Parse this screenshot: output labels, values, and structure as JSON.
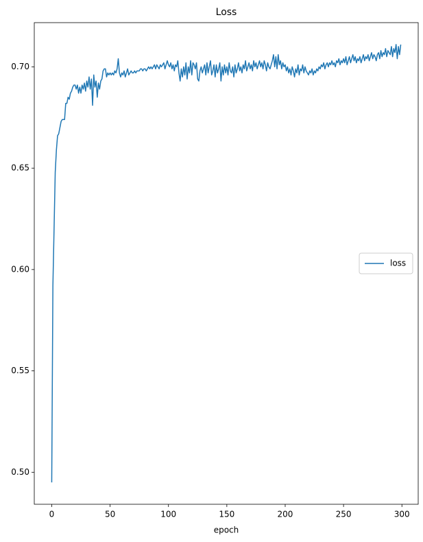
{
  "chart_data": {
    "type": "line",
    "title": "Loss",
    "x_label": "epoch",
    "x": [
      0,
      1,
      2,
      3,
      4,
      5,
      6,
      7,
      8,
      9,
      10,
      11,
      12,
      13,
      14,
      15,
      16,
      17,
      18,
      19,
      20,
      21,
      22,
      23,
      24,
      25,
      26,
      27,
      28,
      29,
      30,
      31,
      32,
      33,
      34,
      35,
      36,
      37,
      38,
      39,
      40,
      41,
      42,
      43,
      44,
      45,
      46,
      47,
      48,
      49,
      50,
      51,
      52,
      53,
      54,
      55,
      56,
      57,
      58,
      59,
      60,
      61,
      62,
      63,
      64,
      65,
      66,
      67,
      68,
      69,
      70,
      71,
      72,
      73,
      74,
      75,
      76,
      77,
      78,
      79,
      80,
      81,
      82,
      83,
      84,
      85,
      86,
      87,
      88,
      89,
      90,
      91,
      92,
      93,
      94,
      95,
      96,
      97,
      98,
      99,
      100,
      101,
      102,
      103,
      104,
      105,
      106,
      107,
      108,
      109,
      110,
      111,
      112,
      113,
      114,
      115,
      116,
      117,
      118,
      119,
      120,
      121,
      122,
      123,
      124,
      125,
      126,
      127,
      128,
      129,
      130,
      131,
      132,
      133,
      134,
      135,
      136,
      137,
      138,
      139,
      140,
      141,
      142,
      143,
      144,
      145,
      146,
      147,
      148,
      149,
      150,
      151,
      152,
      153,
      154,
      155,
      156,
      157,
      158,
      159,
      160,
      161,
      162,
      163,
      164,
      165,
      166,
      167,
      168,
      169,
      170,
      171,
      172,
      173,
      174,
      175,
      176,
      177,
      178,
      179,
      180,
      181,
      182,
      183,
      184,
      185,
      186,
      187,
      188,
      189,
      190,
      191,
      192,
      193,
      194,
      195,
      196,
      197,
      198,
      199,
      200,
      201,
      202,
      203,
      204,
      205,
      206,
      207,
      208,
      209,
      210,
      211,
      212,
      213,
      214,
      215,
      216,
      217,
      218,
      219,
      220,
      221,
      222,
      223,
      224,
      225,
      226,
      227,
      228,
      229,
      230,
      231,
      232,
      233,
      234,
      235,
      236,
      237,
      238,
      239,
      240,
      241,
      242,
      243,
      244,
      245,
      246,
      247,
      248,
      249,
      250,
      251,
      252,
      253,
      254,
      255,
      256,
      257,
      258,
      259,
      260,
      261,
      262,
      263,
      264,
      265,
      266,
      267,
      268,
      269,
      270,
      271,
      272,
      273,
      274,
      275,
      276,
      277,
      278,
      279,
      280,
      281,
      282,
      283,
      284,
      285,
      286,
      287,
      288,
      289,
      290,
      291,
      292,
      293,
      294,
      295,
      296,
      297,
      298,
      299
    ],
    "series": [
      {
        "name": "loss",
        "color": "#1f77b4",
        "values": [
          0.495,
          0.592,
          0.62,
          0.648,
          0.659,
          0.666,
          0.667,
          0.67,
          0.673,
          0.674,
          0.674,
          0.674,
          0.682,
          0.682,
          0.685,
          0.684,
          0.687,
          0.688,
          0.69,
          0.691,
          0.691,
          0.689,
          0.691,
          0.687,
          0.69,
          0.687,
          0.691,
          0.689,
          0.692,
          0.688,
          0.693,
          0.69,
          0.695,
          0.689,
          0.694,
          0.681,
          0.696,
          0.69,
          0.693,
          0.685,
          0.692,
          0.689,
          0.693,
          0.694,
          0.698,
          0.699,
          0.699,
          0.695,
          0.697,
          0.696,
          0.697,
          0.696,
          0.697,
          0.696,
          0.698,
          0.697,
          0.699,
          0.704,
          0.697,
          0.695,
          0.697,
          0.696,
          0.698,
          0.695,
          0.697,
          0.699,
          0.696,
          0.697,
          0.698,
          0.697,
          0.697,
          0.698,
          0.697,
          0.698,
          0.698,
          0.698,
          0.699,
          0.699,
          0.698,
          0.699,
          0.699,
          0.698,
          0.699,
          0.7,
          0.699,
          0.7,
          0.699,
          0.7,
          0.701,
          0.699,
          0.701,
          0.7,
          0.699,
          0.701,
          0.7,
          0.701,
          0.702,
          0.699,
          0.701,
          0.703,
          0.701,
          0.7,
          0.702,
          0.699,
          0.701,
          0.698,
          0.701,
          0.7,
          0.703,
          0.697,
          0.693,
          0.699,
          0.695,
          0.7,
          0.696,
          0.702,
          0.694,
          0.7,
          0.697,
          0.703,
          0.696,
          0.702,
          0.701,
          0.699,
          0.702,
          0.694,
          0.693,
          0.698,
          0.7,
          0.697,
          0.699,
          0.701,
          0.696,
          0.702,
          0.697,
          0.7,
          0.703,
          0.696,
          0.698,
          0.701,
          0.695,
          0.701,
          0.697,
          0.699,
          0.702,
          0.693,
          0.7,
          0.696,
          0.701,
          0.697,
          0.7,
          0.696,
          0.702,
          0.698,
          0.697,
          0.7,
          0.695,
          0.701,
          0.697,
          0.699,
          0.702,
          0.698,
          0.7,
          0.697,
          0.701,
          0.699,
          0.703,
          0.698,
          0.7,
          0.702,
          0.699,
          0.701,
          0.698,
          0.703,
          0.7,
          0.702,
          0.699,
          0.701,
          0.703,
          0.7,
          0.702,
          0.699,
          0.703,
          0.701,
          0.698,
          0.702,
          0.7,
          0.699,
          0.701,
          0.703,
          0.706,
          0.7,
          0.705,
          0.699,
          0.706,
          0.701,
          0.703,
          0.699,
          0.702,
          0.7,
          0.701,
          0.698,
          0.7,
          0.697,
          0.699,
          0.696,
          0.7,
          0.698,
          0.695,
          0.699,
          0.697,
          0.701,
          0.696,
          0.699,
          0.698,
          0.701,
          0.697,
          0.7,
          0.698,
          0.697,
          0.696,
          0.698,
          0.697,
          0.699,
          0.696,
          0.698,
          0.697,
          0.699,
          0.698,
          0.7,
          0.699,
          0.701,
          0.7,
          0.702,
          0.699,
          0.701,
          0.702,
          0.7,
          0.702,
          0.701,
          0.703,
          0.701,
          0.702,
          0.7,
          0.703,
          0.702,
          0.704,
          0.701,
          0.703,
          0.702,
          0.704,
          0.702,
          0.705,
          0.701,
          0.703,
          0.705,
          0.702,
          0.704,
          0.706,
          0.703,
          0.705,
          0.702,
          0.704,
          0.703,
          0.705,
          0.702,
          0.704,
          0.706,
          0.703,
          0.705,
          0.704,
          0.706,
          0.703,
          0.705,
          0.707,
          0.704,
          0.706,
          0.705,
          0.703,
          0.706,
          0.707,
          0.704,
          0.708,
          0.705,
          0.707,
          0.706,
          0.709,
          0.705,
          0.708,
          0.707,
          0.706,
          0.71,
          0.705,
          0.709,
          0.707,
          0.711,
          0.704,
          0.71,
          0.706,
          0.711
        ]
      }
    ],
    "xlim": [
      -14.95,
      313.95
    ],
    "xticks": [
      0,
      50,
      100,
      150,
      200,
      250,
      300
    ],
    "ylim": [
      0.4842,
      0.7218
    ],
    "yticks": [
      {
        "value": 0.5,
        "label": "0.50"
      },
      0.55,
      {
        "value": 0.6,
        "label": "0.60"
      },
      0.65,
      {
        "value": 0.7,
        "label": "0.70"
      }
    ],
    "grid": false,
    "legend": "center right"
  }
}
